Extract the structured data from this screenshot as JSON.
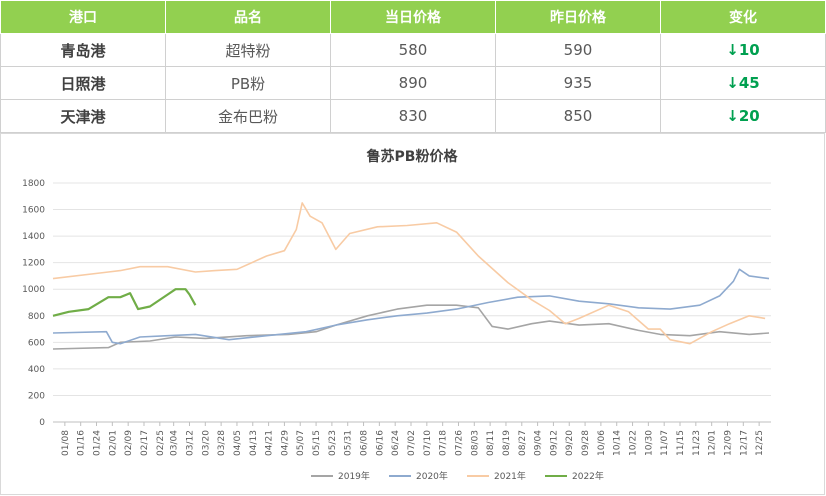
{
  "table": {
    "headers": [
      "港口",
      "品名",
      "当日价格",
      "昨日价格",
      "变化"
    ],
    "header_bg": "#92d050",
    "change_color": "#00a050",
    "rows": [
      {
        "port": "青岛港",
        "product": "超特粉",
        "today": "580",
        "yesterday": "590",
        "change": "↓10"
      },
      {
        "port": "日照港",
        "product": "PB粉",
        "today": "890",
        "yesterday": "935",
        "change": "↓45"
      },
      {
        "port": "天津港",
        "product": "金布巴粉",
        "today": "830",
        "yesterday": "850",
        "change": "↓20"
      }
    ]
  },
  "chart_data": {
    "type": "line",
    "title": "鲁苏PB粉价格",
    "xlabel": "",
    "ylabel": "",
    "ylim": [
      0,
      1800
    ],
    "yticks": [
      0,
      200,
      400,
      600,
      800,
      1000,
      1200,
      1400,
      1600,
      1800
    ],
    "xticks": [
      "01/08",
      "01/16",
      "01/24",
      "02/01",
      "02/09",
      "02/17",
      "02/25",
      "03/04",
      "03/12",
      "03/20",
      "03/28",
      "04/05",
      "04/13",
      "04/21",
      "04/29",
      "05/07",
      "05/15",
      "05/23",
      "05/31",
      "06/08",
      "06/16",
      "06/24",
      "07/02",
      "07/10",
      "07/18",
      "07/26",
      "08/03",
      "08/11",
      "08/19",
      "08/27",
      "09/04",
      "09/12",
      "09/20",
      "09/28",
      "10/06",
      "10/14",
      "10/22",
      "10/30",
      "11/07",
      "11/15",
      "11/23",
      "12/01",
      "12/09",
      "12/17",
      "12/25"
    ],
    "grid": true,
    "legend_position": "bottom",
    "series": [
      {
        "name": "2019年",
        "color": "#a5a5a5",
        "x": [
          "01/02",
          "01/30",
          "02/05",
          "02/20",
          "03/05",
          "03/20",
          "04/10",
          "05/01",
          "05/15",
          "05/25",
          "06/10",
          "06/25",
          "07/10",
          "07/25",
          "08/05",
          "08/12",
          "08/20",
          "09/01",
          "09/10",
          "09/25",
          "10/10",
          "10/25",
          "11/05",
          "11/20",
          "12/05",
          "12/20",
          "12/30"
        ],
        "y": [
          550,
          560,
          600,
          610,
          640,
          630,
          650,
          660,
          680,
          730,
          800,
          850,
          880,
          880,
          860,
          720,
          700,
          740,
          760,
          730,
          740,
          690,
          660,
          650,
          680,
          660,
          670
        ]
      },
      {
        "name": "2020年",
        "color": "#8eaacf",
        "x": [
          "01/02",
          "01/29",
          "02/01",
          "02/05",
          "02/15",
          "03/01",
          "03/15",
          "04/01",
          "04/20",
          "05/10",
          "05/25",
          "06/10",
          "06/25",
          "07/10",
          "07/25",
          "08/10",
          "08/25",
          "09/10",
          "09/25",
          "10/10",
          "10/25",
          "11/10",
          "11/25",
          "12/05",
          "12/12",
          "12/15",
          "12/20",
          "12/30"
        ],
        "y": [
          670,
          680,
          600,
          590,
          640,
          650,
          660,
          620,
          650,
          680,
          730,
          770,
          800,
          820,
          850,
          900,
          940,
          950,
          910,
          890,
          860,
          850,
          880,
          950,
          1060,
          1150,
          1100,
          1080
        ]
      },
      {
        "name": "2021年",
        "color": "#f8cba4",
        "x": [
          "01/02",
          "01/30",
          "02/05",
          "02/15",
          "03/01",
          "03/15",
          "03/25",
          "04/05",
          "04/20",
          "04/29",
          "05/05",
          "05/08",
          "05/12",
          "05/18",
          "05/25",
          "06/01",
          "06/15",
          "06/30",
          "07/15",
          "07/25",
          "08/05",
          "08/20",
          "09/01",
          "09/10",
          "09/18",
          "09/25",
          "10/10",
          "10/20",
          "10/30",
          "11/05",
          "11/10",
          "11/20",
          "12/01",
          "12/10",
          "12/20",
          "12/28"
        ],
        "y": [
          1080,
          1130,
          1140,
          1170,
          1170,
          1130,
          1140,
          1150,
          1250,
          1290,
          1450,
          1650,
          1550,
          1500,
          1300,
          1420,
          1470,
          1480,
          1500,
          1430,
          1250,
          1050,
          920,
          840,
          740,
          780,
          880,
          830,
          700,
          700,
          620,
          590,
          680,
          740,
          800,
          780
        ]
      },
      {
        "name": "2022年",
        "color": "#70ad47",
        "x": [
          "01/02",
          "01/10",
          "01/20",
          "01/30",
          "02/05",
          "02/10",
          "02/14",
          "02/20",
          "03/01",
          "03/05",
          "03/10",
          "03/12",
          "03/15"
        ],
        "y": [
          800,
          830,
          850,
          940,
          940,
          970,
          850,
          870,
          960,
          1000,
          1000,
          960,
          880
        ]
      }
    ]
  }
}
